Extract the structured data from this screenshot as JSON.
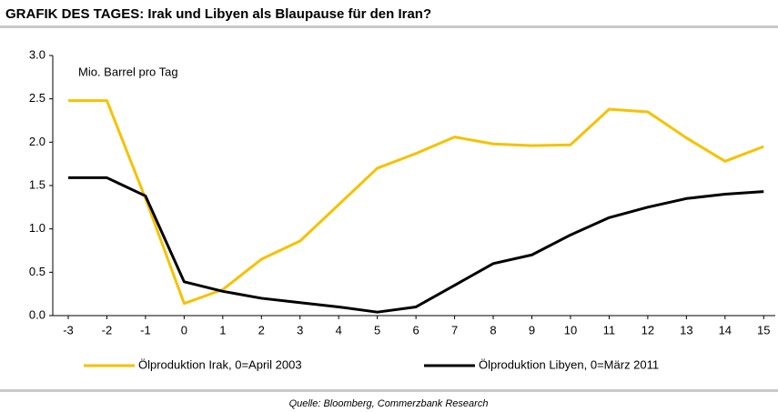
{
  "chart_data": {
    "type": "line",
    "title": "GRAFIK DES TAGES: Irak und Libyen als Blaupause für den Iran?",
    "y_label": "Mio. Barrel pro Tag",
    "source": "Quelle: Bloomberg, Commerzbank Research",
    "x": [
      -3,
      -2,
      -1,
      0,
      1,
      2,
      3,
      4,
      5,
      6,
      7,
      8,
      9,
      10,
      11,
      12,
      13,
      14,
      15
    ],
    "series": [
      {
        "name": "Ölproduktion Irak, 0=April 2003",
        "color": "#f5c200",
        "values": [
          2.48,
          2.48,
          1.35,
          0.14,
          0.3,
          0.65,
          0.86,
          1.28,
          1.7,
          1.87,
          2.06,
          1.98,
          1.96,
          1.97,
          2.38,
          2.35,
          2.05,
          1.78,
          1.95
        ]
      },
      {
        "name": "Ölproduktion Libyen, 0=März 2011",
        "color": "#000000",
        "values": [
          1.59,
          1.59,
          1.38,
          0.39,
          0.28,
          0.2,
          0.15,
          0.1,
          0.04,
          0.1,
          0.35,
          0.6,
          0.7,
          0.93,
          1.13,
          1.25,
          1.35,
          1.4,
          1.43
        ]
      }
    ],
    "xlim": [
      -3.4,
      15.3
    ],
    "xticks": [
      -3,
      -2,
      -1,
      0,
      1,
      2,
      3,
      4,
      5,
      6,
      7,
      8,
      9,
      10,
      11,
      12,
      13,
      14,
      15
    ],
    "ylim": [
      0,
      3
    ],
    "yticks": [
      {
        "value": 0,
        "label": "0.0"
      },
      0.5,
      {
        "value": 1,
        "label": "1.0"
      },
      1.5,
      {
        "value": 2,
        "label": "2.0"
      },
      2.5,
      {
        "value": 3,
        "label": "3.0"
      }
    ],
    "legend": "bottom"
  }
}
